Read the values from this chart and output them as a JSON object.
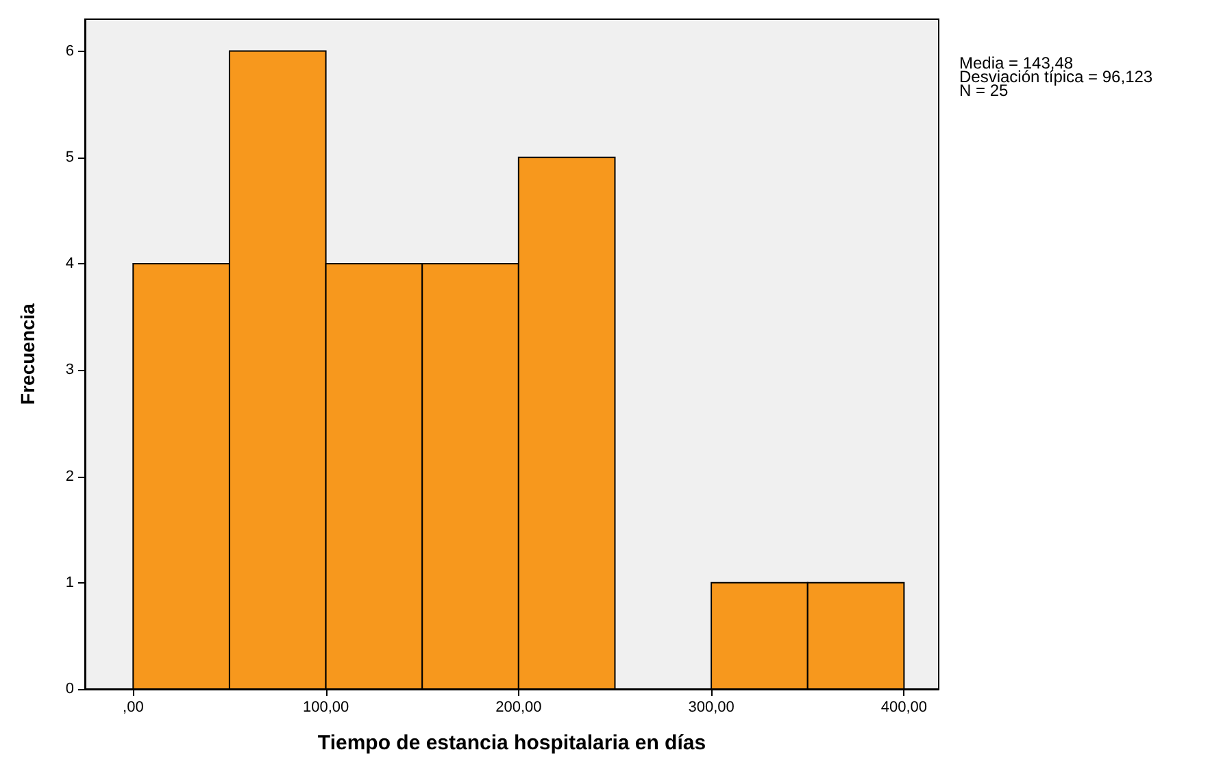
{
  "chart_data": {
    "type": "histogram",
    "xlabel": "Tiempo de estancia hospitalaria en días",
    "ylabel": "Frecuencia",
    "bins": [
      0,
      50,
      100,
      150,
      200,
      250,
      300,
      350,
      400
    ],
    "values": [
      4,
      6,
      4,
      4,
      5,
      0,
      1,
      1
    ],
    "color": "#f7981d",
    "xlim": [
      -25,
      418
    ],
    "xticks": [
      {
        "value": 0,
        "label": ",00"
      },
      {
        "value": 100,
        "label": "100,00"
      },
      {
        "value": 200,
        "label": "200,00"
      },
      {
        "value": 300,
        "label": "300,00"
      },
      {
        "value": 400,
        "label": "400,00"
      }
    ],
    "ylim": [
      0,
      6.3
    ],
    "yticks": [
      0,
      1,
      2,
      3,
      4,
      5,
      6
    ],
    "grid": false,
    "annotations": [
      "Media = 143,48",
      "Desviación típica = 96,123",
      "N = 25"
    ]
  }
}
